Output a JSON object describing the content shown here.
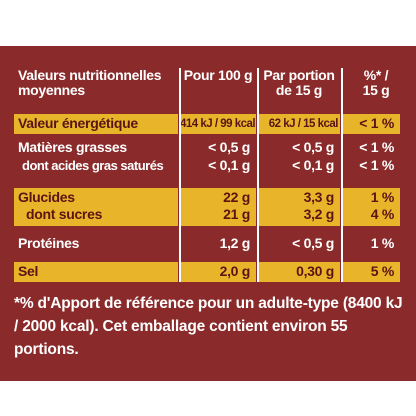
{
  "colors": {
    "background": "#8a2a2a",
    "highlight": "#e8b52a",
    "highlight_text": "#5a1414",
    "text": "#ffffff"
  },
  "table": {
    "header": {
      "label": "Valeurs nutritionnelles moyennes",
      "per100": "Pour 100 g",
      "portion": "Par portion de 15 g",
      "pct": "%* / 15 g"
    },
    "rows": [
      {
        "label": "Valeur énergétique",
        "per100": "414 kJ / 99 kcal",
        "portion": "62 kJ / 15 kcal",
        "pct": "< 1 %"
      },
      {
        "label": "Matières grasses",
        "per100": "< 0,5 g",
        "portion": "< 0,5 g",
        "pct": "< 1 %"
      },
      {
        "label": "dont acides gras saturés",
        "per100": "< 0,1 g",
        "portion": "< 0,1 g",
        "pct": "< 1 %"
      },
      {
        "label": "Glucides",
        "per100": "22 g",
        "portion": "3,3 g",
        "pct": "1 %"
      },
      {
        "label": "dont sucres",
        "per100": "21 g",
        "portion": "3,2 g",
        "pct": "4 %"
      },
      {
        "label": "Protéines",
        "per100": "1,2 g",
        "portion": "< 0,5 g",
        "pct": "1 %"
      },
      {
        "label": "Sel",
        "per100": "2,0 g",
        "portion": "0,30 g",
        "pct": "5 %"
      }
    ]
  },
  "footnote": "*% d'Apport de référence pour un adulte-type (8400 kJ / 2000 kcal). Cet emballage contient environ 55 portions."
}
